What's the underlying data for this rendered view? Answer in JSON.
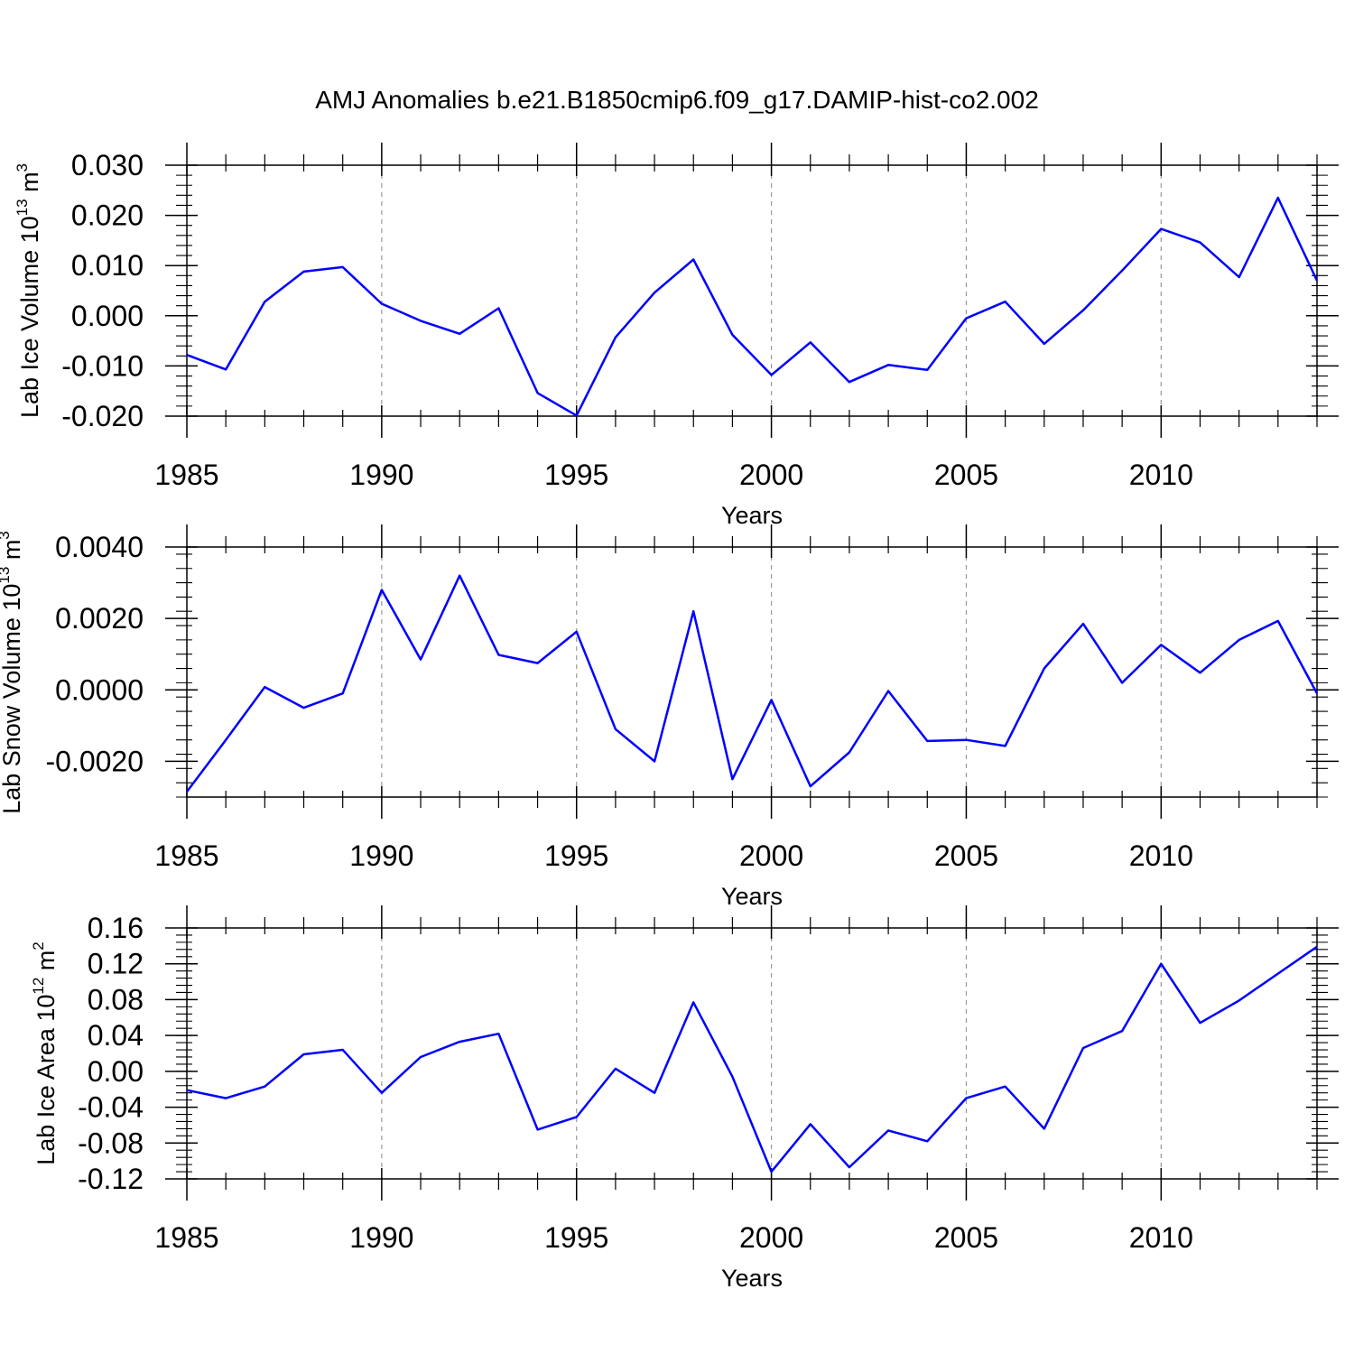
{
  "title": "AMJ Anomalies b.e21.B1850cmip6.f09_g17.DAMIP-hist-co2.002",
  "line_color": "#0000ff",
  "chart_data": [
    {
      "type": "line",
      "ylabel_main": "Lab Ice Volume 10",
      "ylabel_exp": "13",
      "ylabel_unit": " m",
      "ylabel_unit_exp": "3",
      "xlabel": "Years",
      "xlim": [
        1985,
        2014
      ],
      "ylim": [
        -0.02,
        0.03
      ],
      "yticks": [
        -0.02,
        -0.01,
        0.0,
        0.01,
        0.02,
        0.03
      ],
      "ytick_labels": [
        "-0.020",
        "-0.010",
        "0.000",
        "0.010",
        "0.020",
        "0.030"
      ],
      "xticks": [
        1985,
        1990,
        1995,
        2000,
        2005,
        2010
      ],
      "xtick_labels": [
        "1985",
        "1990",
        "1995",
        "2000",
        "2005",
        "2010"
      ],
      "x": [
        1985,
        1986,
        1987,
        1988,
        1989,
        1990,
        1991,
        1992,
        1993,
        1994,
        1995,
        1996,
        1997,
        1998,
        1999,
        2000,
        2001,
        2002,
        2003,
        2004,
        2005,
        2006,
        2007,
        2008,
        2009,
        2010,
        2011,
        2012,
        2013,
        2014
      ],
      "values": [
        -0.0078,
        -0.0107,
        0.0028,
        0.0088,
        0.0097,
        0.0024,
        -0.001,
        -0.0036,
        0.0015,
        -0.0154,
        -0.0199,
        -0.0043,
        0.0046,
        0.0112,
        -0.0038,
        -0.0118,
        -0.0053,
        -0.0132,
        -0.0098,
        -0.0108,
        -0.0005,
        0.0028,
        -0.0056,
        0.0011,
        0.009,
        0.0173,
        0.0146,
        0.0077,
        0.0235,
        0.007
      ]
    },
    {
      "type": "line",
      "ylabel_main": "Lab Snow Volume 10",
      "ylabel_exp": "13",
      "ylabel_unit": " m",
      "ylabel_unit_exp": "3",
      "xlabel": "Years",
      "xlim": [
        1985,
        2014
      ],
      "ylim": [
        -0.003,
        0.004
      ],
      "yticks": [
        -0.002,
        0.0,
        0.002,
        0.004
      ],
      "ytick_labels": [
        "-0.0020",
        "0.0000",
        "0.0020",
        "0.0040"
      ],
      "xticks": [
        1985,
        1990,
        1995,
        2000,
        2005,
        2010
      ],
      "xtick_labels": [
        "1985",
        "1990",
        "1995",
        "2000",
        "2005",
        "2010"
      ],
      "x": [
        1985,
        1986,
        1987,
        1988,
        1989,
        1990,
        1991,
        1992,
        1993,
        1994,
        1995,
        1996,
        1997,
        1998,
        1999,
        2000,
        2001,
        2002,
        2003,
        2004,
        2005,
        2006,
        2007,
        2008,
        2009,
        2010,
        2011,
        2012,
        2013,
        2014
      ],
      "values": [
        -0.00285,
        -0.0014,
        8e-05,
        -0.0005,
        -0.0001,
        0.0028,
        0.00085,
        0.0032,
        0.00098,
        0.00075,
        0.00163,
        -0.0011,
        -0.002,
        0.0022,
        -0.0025,
        -0.00028,
        -0.0027,
        -0.00175,
        -3e-05,
        -0.00143,
        -0.0014,
        -0.00157,
        0.0006,
        0.00185,
        0.0002,
        0.00126,
        0.00048,
        0.0014,
        0.00193,
        -0.0001
      ]
    },
    {
      "type": "line",
      "ylabel_main": "Lab Ice Area 10",
      "ylabel_exp": "12",
      "ylabel_unit": " m",
      "ylabel_unit_exp": "2",
      "xlabel": "Years",
      "xlim": [
        1985,
        2014
      ],
      "ylim": [
        -0.12,
        0.16
      ],
      "yticks": [
        -0.12,
        -0.08,
        -0.04,
        0.0,
        0.04,
        0.08,
        0.12,
        0.16
      ],
      "ytick_labels": [
        "-0.12",
        "-0.08",
        "-0.04",
        "0.00",
        "0.04",
        "0.08",
        "0.12",
        "0.16"
      ],
      "xticks": [
        1985,
        1990,
        1995,
        2000,
        2005,
        2010
      ],
      "xtick_labels": [
        "1985",
        "1990",
        "1995",
        "2000",
        "2005",
        "2010"
      ],
      "x": [
        1985,
        1986,
        1987,
        1988,
        1989,
        1990,
        1991,
        1992,
        1993,
        1994,
        1995,
        1996,
        1997,
        1998,
        1999,
        2000,
        2001,
        2002,
        2003,
        2004,
        2005,
        2006,
        2007,
        2008,
        2009,
        2010,
        2011,
        2012,
        2013,
        2014
      ],
      "values": [
        -0.021,
        -0.03,
        -0.017,
        0.019,
        0.024,
        -0.024,
        0.016,
        0.033,
        0.042,
        -0.065,
        -0.051,
        0.003,
        -0.024,
        0.077,
        -0.006,
        -0.112,
        -0.059,
        -0.107,
        -0.066,
        -0.078,
        -0.03,
        -0.017,
        -0.064,
        0.026,
        0.045,
        0.12,
        0.054,
        0.079,
        0.109,
        0.139
      ]
    }
  ]
}
